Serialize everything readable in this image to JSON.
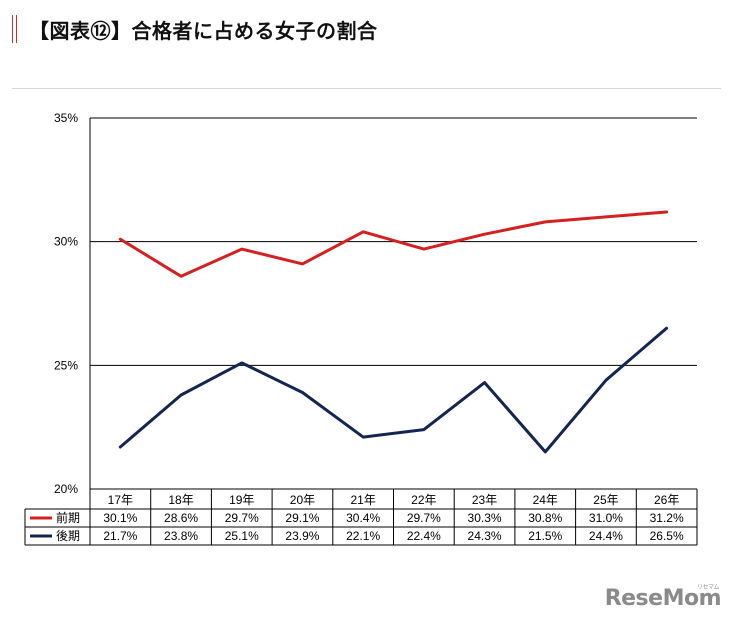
{
  "header": {
    "title": "【図表⑫】合格者に占める女子の割合"
  },
  "colors": {
    "accent": "#c9302c",
    "series_front": "#d42020",
    "series_back": "#142550"
  },
  "chart_data": {
    "type": "line",
    "categories": [
      "17年",
      "18年",
      "19年",
      "20年",
      "21年",
      "22年",
      "23年",
      "24年",
      "25年",
      "26年"
    ],
    "series": [
      {
        "name": "前期",
        "values": [
          30.1,
          28.6,
          29.7,
          29.1,
          30.4,
          29.7,
          30.3,
          30.8,
          31.0,
          31.2
        ],
        "labels": [
          "30.1%",
          "28.6%",
          "29.7%",
          "29.1%",
          "30.4%",
          "29.7%",
          "30.3%",
          "30.8%",
          "31.0%",
          "31.2%"
        ]
      },
      {
        "name": "後期",
        "values": [
          21.7,
          23.8,
          25.1,
          23.9,
          22.1,
          22.4,
          24.3,
          21.5,
          24.4,
          26.5
        ],
        "labels": [
          "21.7%",
          "23.8%",
          "25.1%",
          "23.9%",
          "22.1%",
          "22.4%",
          "24.3%",
          "21.5%",
          "24.4%",
          "26.5%"
        ]
      }
    ],
    "ylim": [
      20,
      35
    ],
    "yticks": [
      20,
      25,
      30,
      35
    ],
    "ytick_labels": [
      "20%",
      "25%",
      "30%",
      "35%"
    ],
    "grid": true,
    "legend": "data-table-left"
  },
  "watermark": {
    "logo": "ReseMom",
    "sub": "リセマム"
  }
}
